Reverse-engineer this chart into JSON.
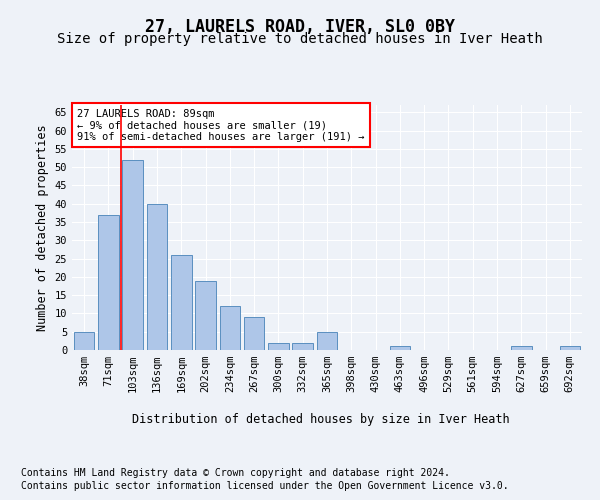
{
  "title": "27, LAURELS ROAD, IVER, SL0 0BY",
  "subtitle": "Size of property relative to detached houses in Iver Heath",
  "xlabel": "Distribution of detached houses by size in Iver Heath",
  "ylabel": "Number of detached properties",
  "categories": [
    "38sqm",
    "71sqm",
    "103sqm",
    "136sqm",
    "169sqm",
    "202sqm",
    "234sqm",
    "267sqm",
    "300sqm",
    "332sqm",
    "365sqm",
    "398sqm",
    "430sqm",
    "463sqm",
    "496sqm",
    "529sqm",
    "561sqm",
    "594sqm",
    "627sqm",
    "659sqm",
    "692sqm"
  ],
  "values": [
    5,
    37,
    52,
    40,
    26,
    19,
    12,
    9,
    2,
    2,
    5,
    0,
    0,
    1,
    0,
    0,
    0,
    0,
    1,
    0,
    1
  ],
  "bar_color": "#aec6e8",
  "bar_edge_color": "#5a8fc0",
  "red_line_x": 1.5,
  "annotation_lines": [
    "27 LAURELS ROAD: 89sqm",
    "← 9% of detached houses are smaller (19)",
    "91% of semi-detached houses are larger (191) →"
  ],
  "ylim": [
    0,
    67
  ],
  "yticks": [
    0,
    5,
    10,
    15,
    20,
    25,
    30,
    35,
    40,
    45,
    50,
    55,
    60,
    65
  ],
  "footer_line1": "Contains HM Land Registry data © Crown copyright and database right 2024.",
  "footer_line2": "Contains public sector information licensed under the Open Government Licence v3.0.",
  "background_color": "#eef2f8",
  "grid_color": "#ffffff",
  "title_fontsize": 12,
  "subtitle_fontsize": 10,
  "axis_label_fontsize": 8.5,
  "tick_fontsize": 7.5,
  "annotation_fontsize": 7.5,
  "footer_fontsize": 7
}
